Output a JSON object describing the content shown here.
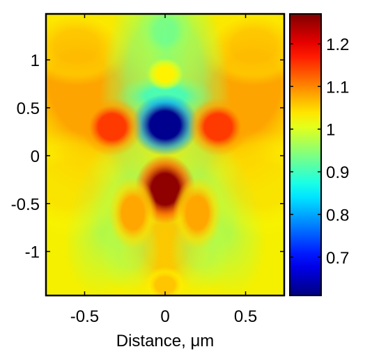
{
  "chart_data": {
    "type": "heatmap",
    "title": "",
    "xlabel": "Distance, μm",
    "ylabel": "",
    "xlim": [
      -0.74,
      0.74
    ],
    "ylim": [
      -1.46,
      1.48
    ],
    "x_ticks": [
      "-0.5",
      "0",
      "0.5"
    ],
    "x_tick_values": [
      -0.5,
      0,
      0.5
    ],
    "y_ticks": [
      "1",
      "0.5",
      "0",
      "-0.5",
      "-1"
    ],
    "y_tick_values": [
      1,
      0.5,
      0,
      -0.5,
      -1
    ],
    "colorbar": {
      "range": [
        0.61,
        1.27
      ],
      "ticks": [
        "1.2",
        "1.1",
        "1",
        "0.9",
        "0.8",
        "0.7"
      ],
      "tick_values": [
        1.2,
        1.1,
        1.0,
        0.9,
        0.8,
        0.7
      ],
      "colormap": "jet"
    },
    "features": [
      {
        "x": 0.0,
        "y": 0.32,
        "value": 0.62
      },
      {
        "x": 0.0,
        "y": -0.35,
        "value": 1.26
      },
      {
        "x": -0.33,
        "y": 0.3,
        "value": 1.15
      },
      {
        "x": 0.33,
        "y": 0.3,
        "value": 1.15
      },
      {
        "x": 0.0,
        "y": 0.85,
        "value": 1.03
      },
      {
        "x": 0.0,
        "y": -1.35,
        "value": 1.06
      },
      {
        "x": -0.2,
        "y": -0.6,
        "value": 1.08
      },
      {
        "x": 0.2,
        "y": -0.6,
        "value": 1.08
      }
    ],
    "grid": false
  }
}
